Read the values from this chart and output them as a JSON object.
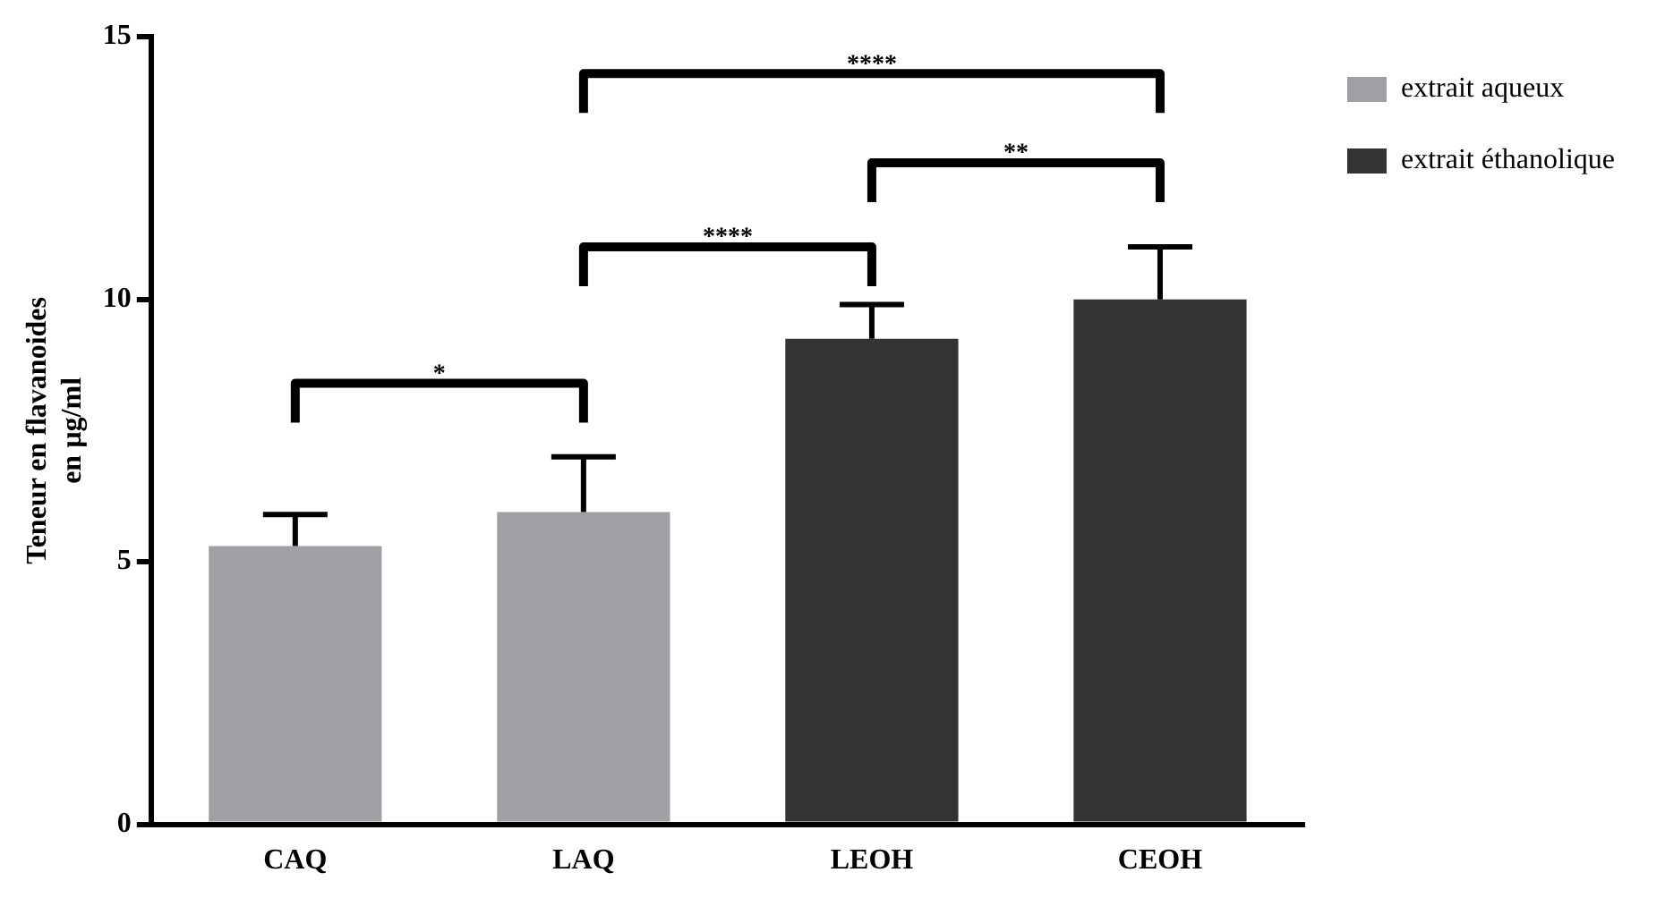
{
  "chart_data": {
    "type": "bar",
    "ylabel": "Teneur en flavanoides\nen µg/ml",
    "categories": [
      "CAQ",
      "LAQ",
      "LEOH",
      "CEOH"
    ],
    "series": [
      {
        "name": "extrait aqueux",
        "color": "#a0a0a4",
        "values": [
          5.3,
          5.95,
          null,
          null
        ],
        "errors": [
          [
            5.3,
            5.9
          ],
          [
            5.95,
            7.0
          ],
          null,
          null
        ]
      },
      {
        "name": "extrait éthanolique",
        "color": "#333333",
        "values": [
          null,
          null,
          9.25,
          10
        ],
        "errors": [
          null,
          null,
          [
            9.25,
            9.9
          ],
          [
            10,
            11.0
          ]
        ]
      }
    ],
    "ylim": [
      0,
      15
    ],
    "yticks": [
      0,
      5,
      10,
      15
    ],
    "grid": false,
    "legend": "top right",
    "annotations": [
      "*",
      "****",
      "**",
      "****"
    ]
  }
}
